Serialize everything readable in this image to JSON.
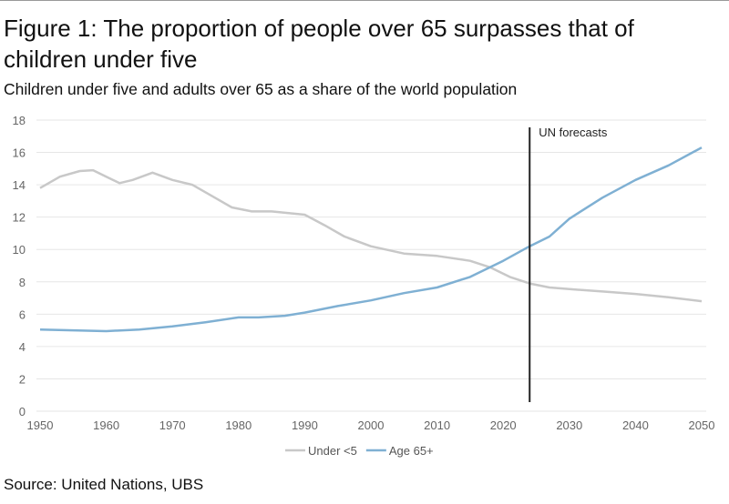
{
  "chart_data": {
    "type": "line",
    "title": "Figure 1: The proportion of people over 65 surpasses that of children under five",
    "subtitle": "Children under five and adults over 65 as a share of the world population",
    "xlabel": "",
    "ylabel": "",
    "xlim": [
      1950,
      2050
    ],
    "ylim": [
      0,
      18
    ],
    "xticks": [
      1950,
      1960,
      1970,
      1980,
      1990,
      2000,
      2010,
      2020,
      2030,
      2040,
      2050
    ],
    "yticks": [
      0,
      2,
      4,
      6,
      8,
      10,
      12,
      14,
      16,
      18
    ],
    "grid": "horizontal",
    "legend_position": "bottom",
    "annotation": {
      "label": "UN forecasts",
      "x": 2024
    },
    "series": [
      {
        "name": "Under <5",
        "color": "#c8c8c8",
        "x": [
          1950,
          1953,
          1956,
          1958,
          1960,
          1962,
          1964,
          1967,
          1970,
          1973,
          1976,
          1979,
          1982,
          1985,
          1990,
          1993,
          1996,
          2000,
          2005,
          2010,
          2015,
          2018,
          2021,
          2024,
          2027,
          2030,
          2035,
          2040,
          2045,
          2050
        ],
        "y": [
          13.8,
          14.5,
          14.85,
          14.9,
          14.5,
          14.1,
          14.3,
          14.75,
          14.3,
          14.0,
          13.3,
          12.6,
          12.35,
          12.35,
          12.15,
          11.5,
          10.8,
          10.2,
          9.75,
          9.6,
          9.3,
          8.9,
          8.3,
          7.9,
          7.65,
          7.55,
          7.4,
          7.25,
          7.05,
          6.8
        ]
      },
      {
        "name": "Age 65+",
        "color": "#7fb0d3",
        "x": [
          1950,
          1955,
          1960,
          1965,
          1970,
          1975,
          1980,
          1983,
          1987,
          1990,
          1995,
          2000,
          2005,
          2010,
          2015,
          2020,
          2024,
          2027,
          2030,
          2035,
          2040,
          2045,
          2050
        ],
        "y": [
          5.05,
          5.0,
          4.95,
          5.05,
          5.25,
          5.5,
          5.8,
          5.8,
          5.9,
          6.1,
          6.5,
          6.85,
          7.3,
          7.65,
          8.3,
          9.3,
          10.2,
          10.8,
          11.9,
          13.2,
          14.3,
          15.2,
          16.3
        ]
      }
    ]
  },
  "source": "Source: United Nations, UBS"
}
